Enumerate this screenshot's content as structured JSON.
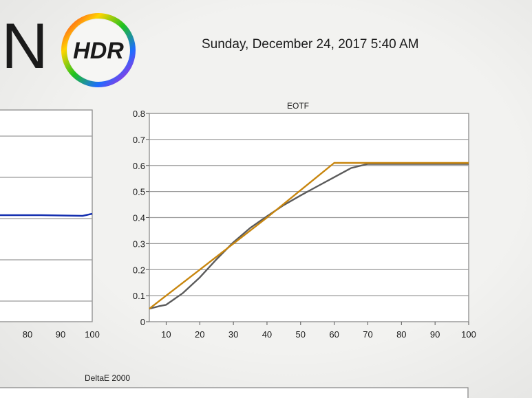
{
  "header": {
    "brand_letter": "N",
    "logo_text": "HDR",
    "timestamp": "Sunday, December 24, 2017 5:40 AM"
  },
  "colors": {
    "reference": "#c8860e",
    "measured": "#5b5b5b",
    "left_series": "#1530b0",
    "grid": "#9a9a9a"
  },
  "left_chart": {
    "x_ticks": [
      "80",
      "90",
      "100"
    ],
    "series_value_fraction": 0.5
  },
  "chart_data": {
    "type": "line",
    "title": "EOTF",
    "xlabel": "",
    "ylabel": "",
    "xlim": [
      5,
      100
    ],
    "ylim": [
      0,
      0.8
    ],
    "x_ticks": [
      10,
      20,
      30,
      40,
      50,
      60,
      70,
      80,
      90,
      100
    ],
    "y_ticks": [
      0,
      0.1,
      0.2,
      0.3,
      0.4,
      0.5,
      0.6,
      0.7,
      0.8
    ],
    "grid": true,
    "series": [
      {
        "color": "#c8860e",
        "x": [
          5,
          10,
          20,
          30,
          40,
          50,
          60,
          70,
          100
        ],
        "y": [
          0.05,
          0.1,
          0.2,
          0.3,
          0.4,
          0.505,
          0.61,
          0.61,
          0.61
        ]
      },
      {
        "color": "#5b5b5b",
        "x": [
          5,
          8,
          10,
          15,
          20,
          25,
          30,
          35,
          40,
          45,
          50,
          55,
          60,
          65,
          70,
          100
        ],
        "y": [
          0.05,
          0.06,
          0.065,
          0.11,
          0.17,
          0.24,
          0.305,
          0.36,
          0.405,
          0.448,
          0.485,
          0.52,
          0.555,
          0.59,
          0.606,
          0.606
        ]
      }
    ]
  },
  "bottom_chart": {
    "title": "DeltaE 2000"
  }
}
